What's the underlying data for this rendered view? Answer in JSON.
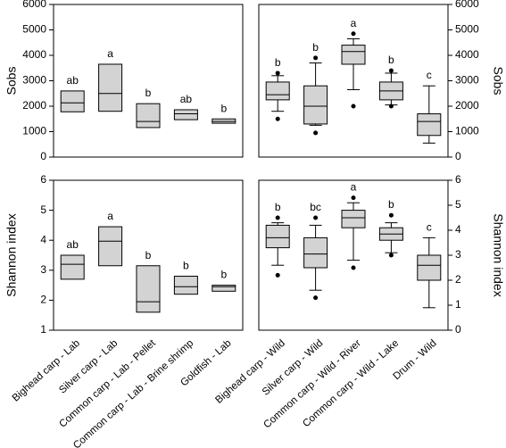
{
  "chart_data": [
    {
      "type": "box",
      "ylabel": "Sobs",
      "y_axis_side": "left",
      "ylim": [
        0,
        6000
      ],
      "yticks": [
        0,
        1000,
        2000,
        3000,
        4000,
        5000,
        6000
      ],
      "box_color": "#d3d3d3",
      "boxes": [
        {
          "q1": 1780,
          "median": 2130,
          "q3": 2600,
          "letter": "ab"
        },
        {
          "q1": 1800,
          "median": 2500,
          "q3": 3650,
          "letter": "a"
        },
        {
          "q1": 1160,
          "median": 1400,
          "q3": 2100,
          "letter": "b"
        },
        {
          "q1": 1470,
          "median": 1700,
          "q3": 1860,
          "letter": "ab"
        },
        {
          "q1": 1330,
          "median": 1400,
          "q3": 1500,
          "letter": "b"
        }
      ]
    },
    {
      "type": "box",
      "ylabel": "Sobs",
      "y_axis_side": "right",
      "ylim": [
        0,
        6000
      ],
      "yticks": [
        0,
        1000,
        2000,
        3000,
        4000,
        5000,
        6000
      ],
      "box_color": "#d3d3d3",
      "boxes": [
        {
          "whisker_low": 1800,
          "q1": 2250,
          "median": 2450,
          "q3": 2950,
          "whisker_high": 3200,
          "outliers": [
            1500,
            3300
          ],
          "letter": "b"
        },
        {
          "whisker_low": 1250,
          "q1": 1300,
          "median": 2000,
          "q3": 2800,
          "whisker_high": 3700,
          "outliers": [
            950,
            3900
          ],
          "letter": "b"
        },
        {
          "whisker_low": 2650,
          "q1": 3650,
          "median": 4150,
          "q3": 4400,
          "whisker_high": 4650,
          "outliers": [
            2000,
            4850
          ],
          "letter": "a"
        },
        {
          "whisker_low": 2050,
          "q1": 2250,
          "median": 2600,
          "q3": 2950,
          "whisker_high": 3300,
          "outliers": [
            2000,
            3400
          ],
          "letter": "b"
        },
        {
          "whisker_low": 550,
          "q1": 850,
          "median": 1400,
          "q3": 1700,
          "whisker_high": 2800,
          "outliers": [],
          "letter": "c"
        }
      ]
    },
    {
      "type": "box",
      "ylabel": "Shannon index",
      "y_axis_side": "left",
      "ylim": [
        1,
        6
      ],
      "yticks": [
        1,
        2,
        3,
        4,
        5,
        6
      ],
      "box_color": "#d3d3d3",
      "categories": [
        "Bighead carp - Lab",
        "Silver carp - Lab",
        "Common carp - Lab - Pellet",
        "Common carp - Lab - Brine shrimp",
        "Goldfish - Lab"
      ],
      "boxes": [
        {
          "q1": 2.7,
          "median": 3.2,
          "q3": 3.5,
          "letter": "ab"
        },
        {
          "q1": 3.15,
          "median": 3.97,
          "q3": 4.45,
          "letter": "a"
        },
        {
          "q1": 1.6,
          "median": 1.95,
          "q3": 3.15,
          "letter": "b"
        },
        {
          "q1": 2.2,
          "median": 2.45,
          "q3": 2.8,
          "letter": "b"
        },
        {
          "q1": 2.3,
          "median": 2.45,
          "q3": 2.5,
          "letter": "b"
        }
      ]
    },
    {
      "type": "box",
      "ylabel": "Shannon index",
      "y_axis_side": "right",
      "ylim": [
        0,
        6
      ],
      "yticks": [
        0,
        1,
        2,
        3,
        4,
        5,
        6
      ],
      "box_color": "#d3d3d3",
      "categories": [
        "Bighead carp - Wild",
        "Silver carp - Wild",
        "Common carp - Wild - River",
        "Common carp - Wild - Lake",
        "Drum - Wild"
      ],
      "boxes": [
        {
          "whisker_low": 2.6,
          "q1": 3.3,
          "median": 3.7,
          "q3": 4.2,
          "whisker_high": 4.3,
          "outliers": [
            2.2,
            4.5
          ],
          "letter": "b"
        },
        {
          "whisker_low": 1.6,
          "q1": 2.5,
          "median": 3.05,
          "q3": 3.7,
          "whisker_high": 4.2,
          "outliers": [
            1.3,
            4.5
          ],
          "letter": "bc"
        },
        {
          "whisker_low": 2.8,
          "q1": 4.1,
          "median": 4.5,
          "q3": 4.8,
          "whisker_high": 5.1,
          "outliers": [
            2.5,
            5.3
          ],
          "letter": "a"
        },
        {
          "whisker_low": 3.1,
          "q1": 3.6,
          "median": 3.85,
          "q3": 4.1,
          "whisker_high": 4.3,
          "outliers": [
            3.0,
            4.6
          ],
          "letter": "b"
        },
        {
          "whisker_low": 0.9,
          "q1": 2.0,
          "median": 2.6,
          "q3": 3.0,
          "whisker_high": 3.7,
          "outliers": [],
          "letter": "c"
        }
      ]
    }
  ]
}
